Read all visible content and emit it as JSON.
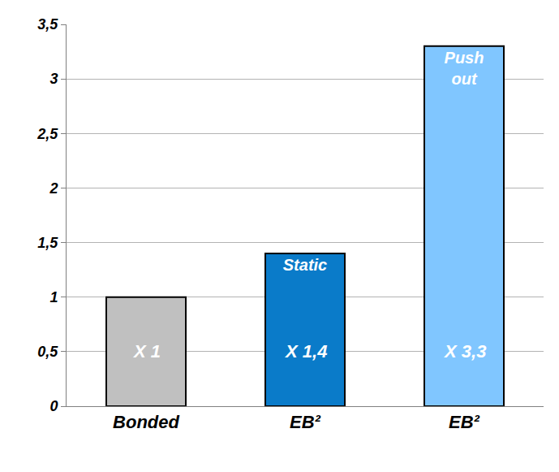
{
  "chart_data": {
    "type": "bar",
    "categories": [
      "Bonded",
      "EB²",
      "EB²"
    ],
    "values": [
      1,
      1.4,
      3.3
    ],
    "value_labels": [
      "X 1",
      "X 1,4",
      "X 3,3"
    ],
    "data_labels": true,
    "annotations": [
      null,
      "Static",
      "Push out"
    ],
    "colors": [
      "#c0c0c0",
      "#0a7bc9",
      "#80c6ff"
    ],
    "ylim": [
      0,
      3.5
    ],
    "yticks": [
      0,
      {
        "value": 0.5,
        "label": "0,5"
      },
      1,
      {
        "value": 1.5,
        "label": "1,5"
      },
      2,
      {
        "value": 2.5,
        "label": "2,5"
      },
      3,
      {
        "value": 3.5,
        "label": "3,5"
      }
    ],
    "grid": true
  }
}
